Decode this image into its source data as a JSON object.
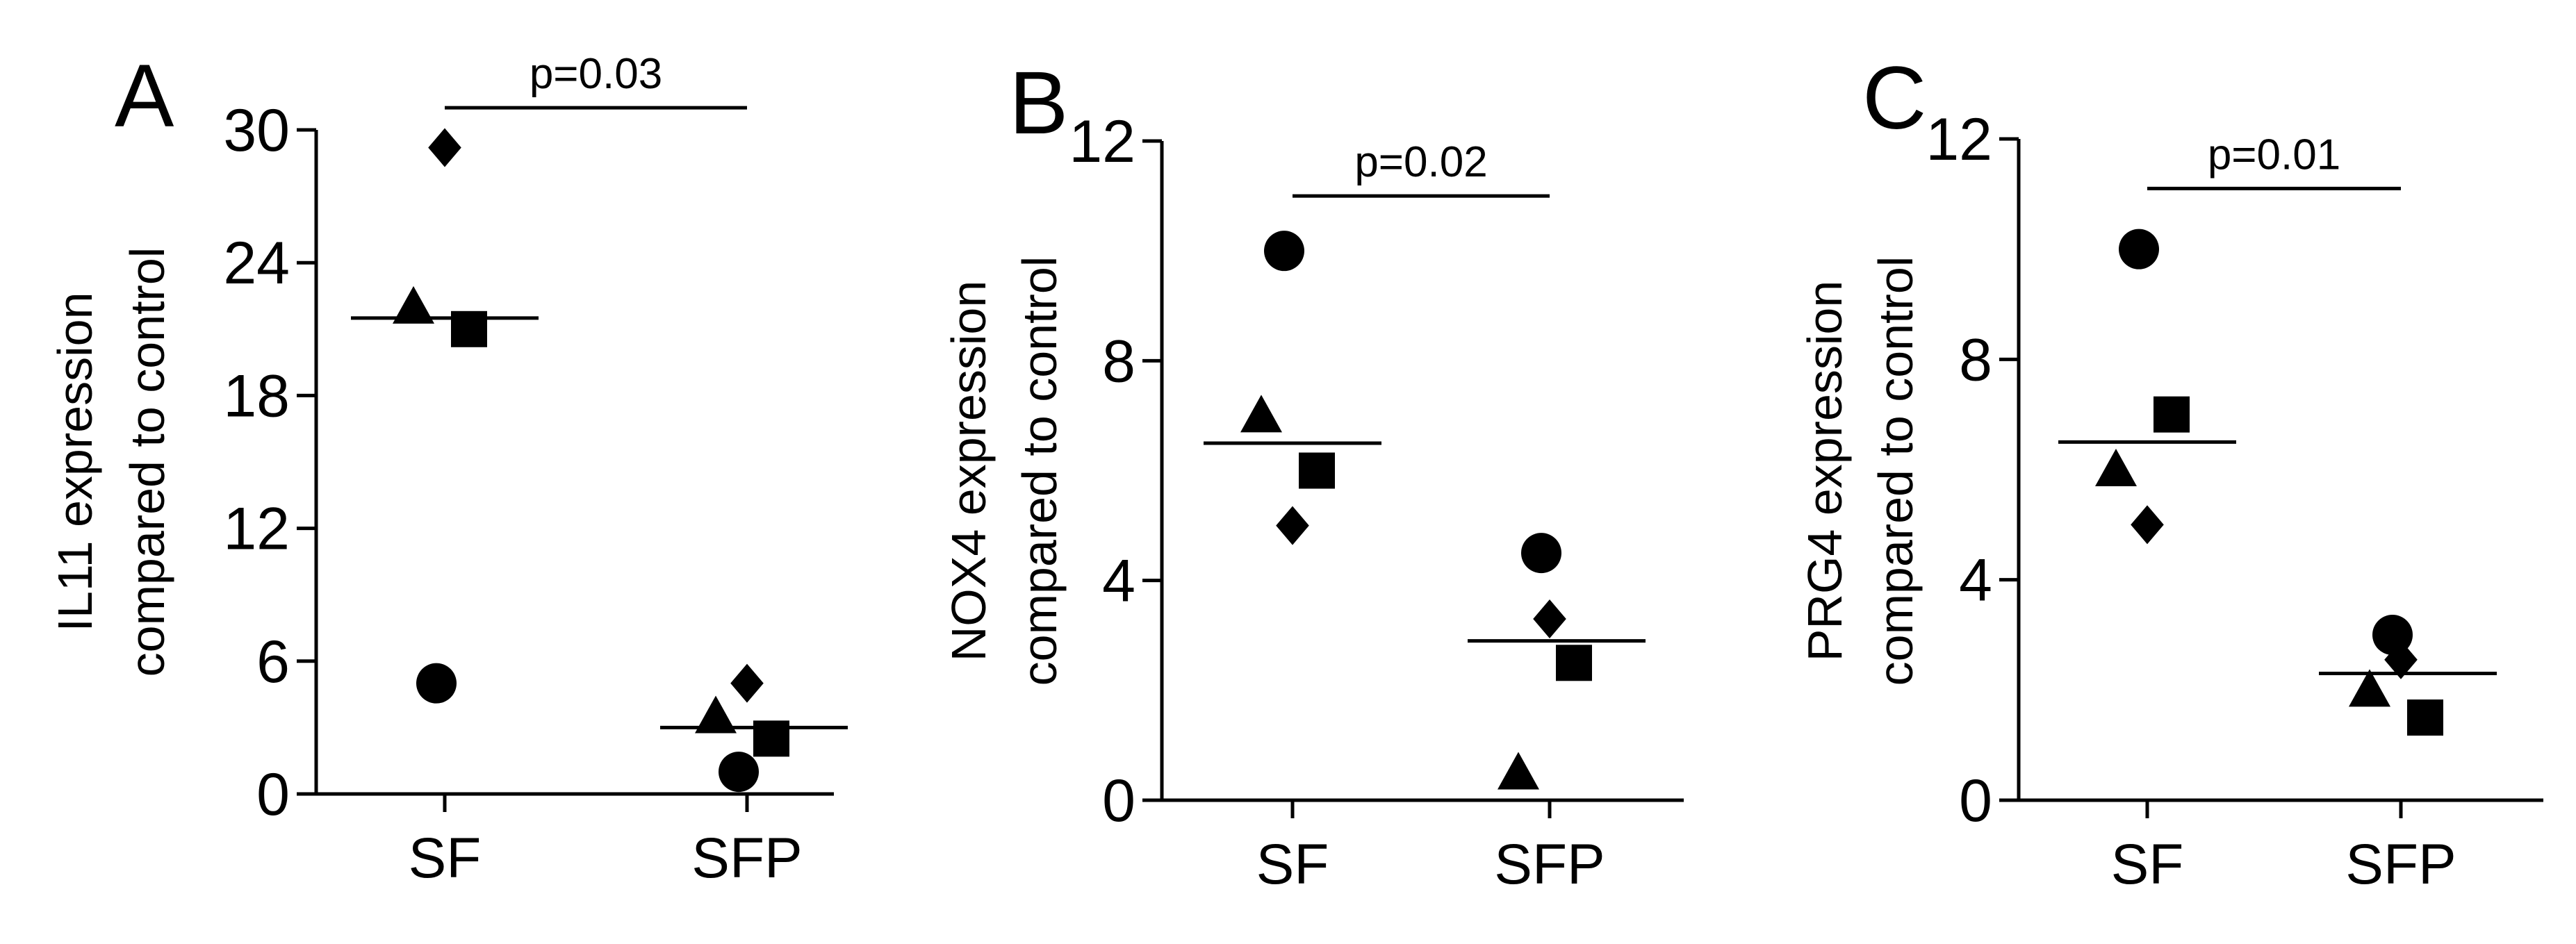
{
  "chart_data": [
    {
      "type": "scatter",
      "panel_label": "A",
      "ylabel_line1": "IL11 expression",
      "ylabel_line2": "compared to control",
      "categories": [
        "SF",
        "SFP"
      ],
      "ylim": [
        0,
        30
      ],
      "yticks": [
        0,
        6,
        12,
        18,
        24,
        30
      ],
      "significance": {
        "text": "p=0.03",
        "value": 31
      },
      "means": [
        21.5,
        3
      ],
      "points": [
        {
          "category": "SF",
          "marker": "diamond",
          "y": 29.2
        },
        {
          "category": "SF",
          "marker": "triangle",
          "y": 22
        },
        {
          "category": "SF",
          "marker": "square",
          "y": 21
        },
        {
          "category": "SF",
          "marker": "circle",
          "y": 5
        },
        {
          "category": "SFP",
          "marker": "diamond",
          "y": 5
        },
        {
          "category": "SFP",
          "marker": "triangle",
          "y": 3.5
        },
        {
          "category": "SFP",
          "marker": "square",
          "y": 2.5
        },
        {
          "category": "SFP",
          "marker": "circle",
          "y": 1
        }
      ]
    },
    {
      "type": "scatter",
      "panel_label": "B",
      "ylabel_line1": "NOX4 expression",
      "ylabel_line2": "compared to control",
      "categories": [
        "SF",
        "SFP"
      ],
      "ylim": [
        0,
        12
      ],
      "yticks": [
        0,
        4,
        8,
        12
      ],
      "significance": {
        "text": "p=0.02",
        "value": 11
      },
      "means": [
        6.5,
        2.9
      ],
      "points": [
        {
          "category": "SF",
          "marker": "circle",
          "y": 10
        },
        {
          "category": "SF",
          "marker": "triangle",
          "y": 7
        },
        {
          "category": "SF",
          "marker": "square",
          "y": 6
        },
        {
          "category": "SF",
          "marker": "diamond",
          "y": 5
        },
        {
          "category": "SFP",
          "marker": "circle",
          "y": 4.5
        },
        {
          "category": "SFP",
          "marker": "diamond",
          "y": 3.3
        },
        {
          "category": "SFP",
          "marker": "square",
          "y": 2.5
        },
        {
          "category": "SFP",
          "marker": "triangle",
          "y": 0.5
        }
      ]
    },
    {
      "type": "scatter",
      "panel_label": "C",
      "ylabel_line1": "PRG4 expression",
      "ylabel_line2": "compared to control",
      "categories": [
        "SF",
        "SFP"
      ],
      "ylim": [
        0,
        12
      ],
      "yticks": [
        0,
        4,
        8,
        12
      ],
      "significance": {
        "text": "p=0.01",
        "value": 11.1
      },
      "means": [
        6.5,
        2.3
      ],
      "points": [
        {
          "category": "SF",
          "marker": "circle",
          "y": 10
        },
        {
          "category": "SF",
          "marker": "square",
          "y": 7
        },
        {
          "category": "SF",
          "marker": "triangle",
          "y": 6
        },
        {
          "category": "SF",
          "marker": "diamond",
          "y": 5
        },
        {
          "category": "SFP",
          "marker": "circle",
          "y": 3
        },
        {
          "category": "SFP",
          "marker": "diamond",
          "y": 2.55
        },
        {
          "category": "SFP",
          "marker": "triangle",
          "y": 2
        },
        {
          "category": "SFP",
          "marker": "square",
          "y": 1.5
        }
      ]
    }
  ]
}
